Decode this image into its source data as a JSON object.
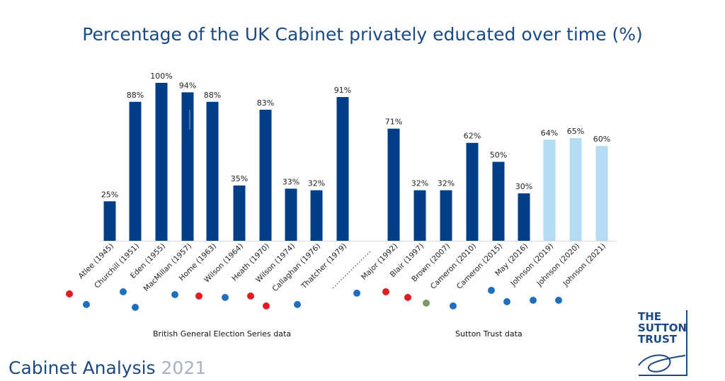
{
  "chart_data": {
    "type": "bar",
    "title": "Percentage of the UK Cabinet privately educated over time (%)",
    "categories": [
      "Atlee (1945)",
      "Churchill (1951)",
      "Eden (1955)",
      "MacMillan (1957)",
      "Home (1963)",
      "Wilson (1964)",
      "Heath (1970)",
      "Wilson (1974)",
      "Callaghan (1976)",
      "Thatcher (1979)",
      "Major (1992)",
      "Blair (1997)",
      "Brown (2007)",
      "Cameron (2010)",
      "Cameron (2015)",
      "May (2016)",
      "Johnson (2019)",
      "Johnson (2020)",
      "Johnson (2021)"
    ],
    "values": [
      25,
      88,
      100,
      94,
      88,
      35,
      83,
      33,
      32,
      91,
      71,
      32,
      32,
      62,
      50,
      30,
      64,
      65,
      60
    ],
    "value_labels": [
      "25%",
      "88%",
      "100%",
      "94%",
      "88%",
      "35%",
      "83%",
      "33%",
      "32%",
      "91%",
      "71%",
      "32%",
      "32%",
      "62%",
      "50%",
      "30%",
      "64%",
      "65%",
      "60%"
    ],
    "ylim": [
      0,
      100
    ],
    "xlabel": "",
    "ylabel": "",
    "grid": false,
    "legend": "none",
    "bar_colors": [
      "#003f87",
      "#003f87",
      "#003f87",
      "#003f87",
      "#003f87",
      "#003f87",
      "#003f87",
      "#003f87",
      "#003f87",
      "#003f87",
      "#003f87",
      "#003f87",
      "#003f87",
      "#003f87",
      "#003f87",
      "#003f87",
      "#b3dcf2",
      "#b3dcf2",
      "#b3dcf2"
    ],
    "dot_colors": [
      "#e31b23",
      "#1f6fc0",
      "#1f6fc0",
      "#1f6fc0",
      "#1f6fc0",
      "#e31b23",
      "#1f6fc0",
      "#e31b23",
      "#e31b23",
      "#1f6fc0",
      "#1f6fc0",
      "#e31b23",
      "#e31b23",
      "#7a9a5f",
      "#1f6fc0",
      "#1f6fc0",
      "#1f6fc0",
      "#1f6fc0",
      "#1f6fc0"
    ],
    "group_labels": [
      "British General Election Series data",
      "Sutton Trust data"
    ]
  },
  "footer": {
    "name": "Cabinet Analysis",
    "year": "2021"
  },
  "logo": {
    "line1": "THE",
    "line2": "SUTTON",
    "line3": "TRUST"
  }
}
